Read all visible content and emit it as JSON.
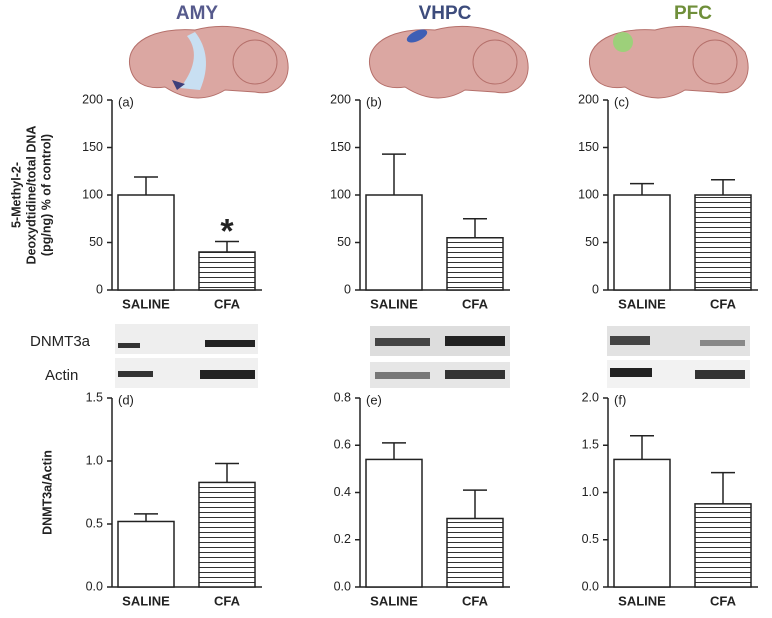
{
  "regions": [
    {
      "label": "AMY",
      "color": "#565a8c"
    },
    {
      "label": "VHPC",
      "color": "#3d4c7c"
    },
    {
      "label": "PFC",
      "color": "#6f8f3a"
    }
  ],
  "blot_labels": [
    "DNMT3a",
    "Actin"
  ],
  "chart_data": [
    {
      "type": "bar",
      "panel": "(a)",
      "ylabel_lines": [
        "5-Methyl-2-",
        "Deoxydtidine/total DNA",
        "(pg/ng) % of control)"
      ],
      "categories": [
        "SALINE",
        "CFA"
      ],
      "values": [
        100,
        40
      ],
      "errors": [
        19,
        11
      ],
      "hatch": [
        false,
        true
      ],
      "annotation": "*",
      "ylim": [
        0,
        200
      ],
      "yticks": [
        0,
        50,
        100,
        150,
        200
      ]
    },
    {
      "type": "bar",
      "panel": "(b)",
      "categories": [
        "SALINE",
        "CFA"
      ],
      "values": [
        100,
        55
      ],
      "errors": [
        43,
        20
      ],
      "hatch": [
        false,
        true
      ],
      "ylim": [
        0,
        200
      ],
      "yticks": [
        0,
        50,
        100,
        150,
        200
      ]
    },
    {
      "type": "bar",
      "panel": "(c)",
      "categories": [
        "SALINE",
        "CFA"
      ],
      "values": [
        100,
        100
      ],
      "errors": [
        12,
        16
      ],
      "hatch": [
        false,
        true
      ],
      "ylim": [
        0,
        200
      ],
      "yticks": [
        0,
        50,
        100,
        150,
        200
      ]
    },
    {
      "type": "bar",
      "panel": "(d)",
      "ylabel_lines": [
        "DNMT3a/Actin"
      ],
      "categories": [
        "SALINE",
        "CFA"
      ],
      "values": [
        0.52,
        0.83
      ],
      "errors": [
        0.06,
        0.15
      ],
      "hatch": [
        false,
        true
      ],
      "ylim": [
        0,
        1.5
      ],
      "yticks": [
        {
          "value": 0,
          "label": "0.0"
        },
        0.5,
        {
          "value": 1,
          "label": "1.0"
        },
        1.5
      ]
    },
    {
      "type": "bar",
      "panel": "(e)",
      "categories": [
        "SALINE",
        "CFA"
      ],
      "values": [
        0.54,
        0.29
      ],
      "errors": [
        0.07,
        0.12
      ],
      "hatch": [
        false,
        true
      ],
      "ylim": [
        0,
        0.8
      ],
      "yticks": [
        {
          "value": 0,
          "label": "0.0"
        },
        0.2,
        0.4,
        0.6,
        0.8
      ]
    },
    {
      "type": "bar",
      "panel": "(f)",
      "categories": [
        "SALINE",
        "CFA"
      ],
      "values": [
        1.35,
        0.88
      ],
      "errors": [
        0.25,
        0.33
      ],
      "hatch": [
        false,
        true
      ],
      "ylim": [
        0,
        2.0
      ],
      "yticks": [
        {
          "value": 0,
          "label": "0.0"
        },
        0.5,
        {
          "value": 1,
          "label": "1.0"
        },
        1.5,
        {
          "value": 2,
          "label": "2.0"
        }
      ]
    }
  ]
}
